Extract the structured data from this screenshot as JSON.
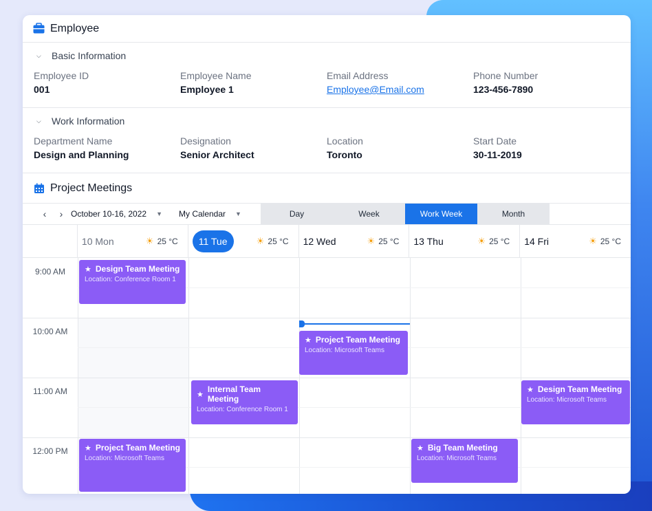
{
  "employee": {
    "title": "Employee",
    "basic": {
      "heading": "Basic Information",
      "fields": [
        {
          "label": "Employee ID",
          "value": "001"
        },
        {
          "label": "Employee Name",
          "value": "Employee 1"
        },
        {
          "label": "Email Address",
          "value": "Employee@Email.com"
        },
        {
          "label": "Phone Number",
          "value": "123-456-7890"
        }
      ]
    },
    "work": {
      "heading": "Work Information",
      "fields": [
        {
          "label": "Department Name",
          "value": "Design and Planning"
        },
        {
          "label": "Designation",
          "value": "Senior Architect"
        },
        {
          "label": "Location",
          "value": "Toronto"
        },
        {
          "label": "Start Date",
          "value": "30-11-2019"
        }
      ]
    }
  },
  "meetings": {
    "title": "Project Meetings",
    "date_range": "October 10-16, 2022",
    "calendar": "My Calendar",
    "views": [
      "Day",
      "Week",
      "Work Week",
      "Month"
    ],
    "active_view": "Work Week",
    "days": [
      {
        "label": "10 Mon",
        "temp": "25 °C"
      },
      {
        "label": "11 Tue",
        "temp": "25 °C",
        "today": true
      },
      {
        "label": "12 Wed",
        "temp": "25 °C"
      },
      {
        "label": "13 Thu",
        "temp": "25 °C"
      },
      {
        "label": "14 Fri",
        "temp": "25 °C"
      }
    ],
    "times": [
      "9:00 AM",
      "10:00 AM",
      "11:00 AM",
      "12:00 PM"
    ],
    "events": [
      {
        "title": "Design Team Meeting",
        "location": "Location: Conference Room 1"
      },
      {
        "title": "Project Team Meeting",
        "location": "Location: Microsoft Teams"
      },
      {
        "title": "Internal Team Meeting",
        "location": "Location: Conference Room 1"
      },
      {
        "title": "Design Team Meeting",
        "location": "Location: Microsoft Teams"
      },
      {
        "title": "Project Team Meeting",
        "location": "Location: Microsoft Teams"
      },
      {
        "title": "Big Team Meeting",
        "location": "Location: Microsoft Teams"
      }
    ],
    "colors": {
      "event": "#8b5cf6",
      "accent": "#1a73e8"
    }
  }
}
